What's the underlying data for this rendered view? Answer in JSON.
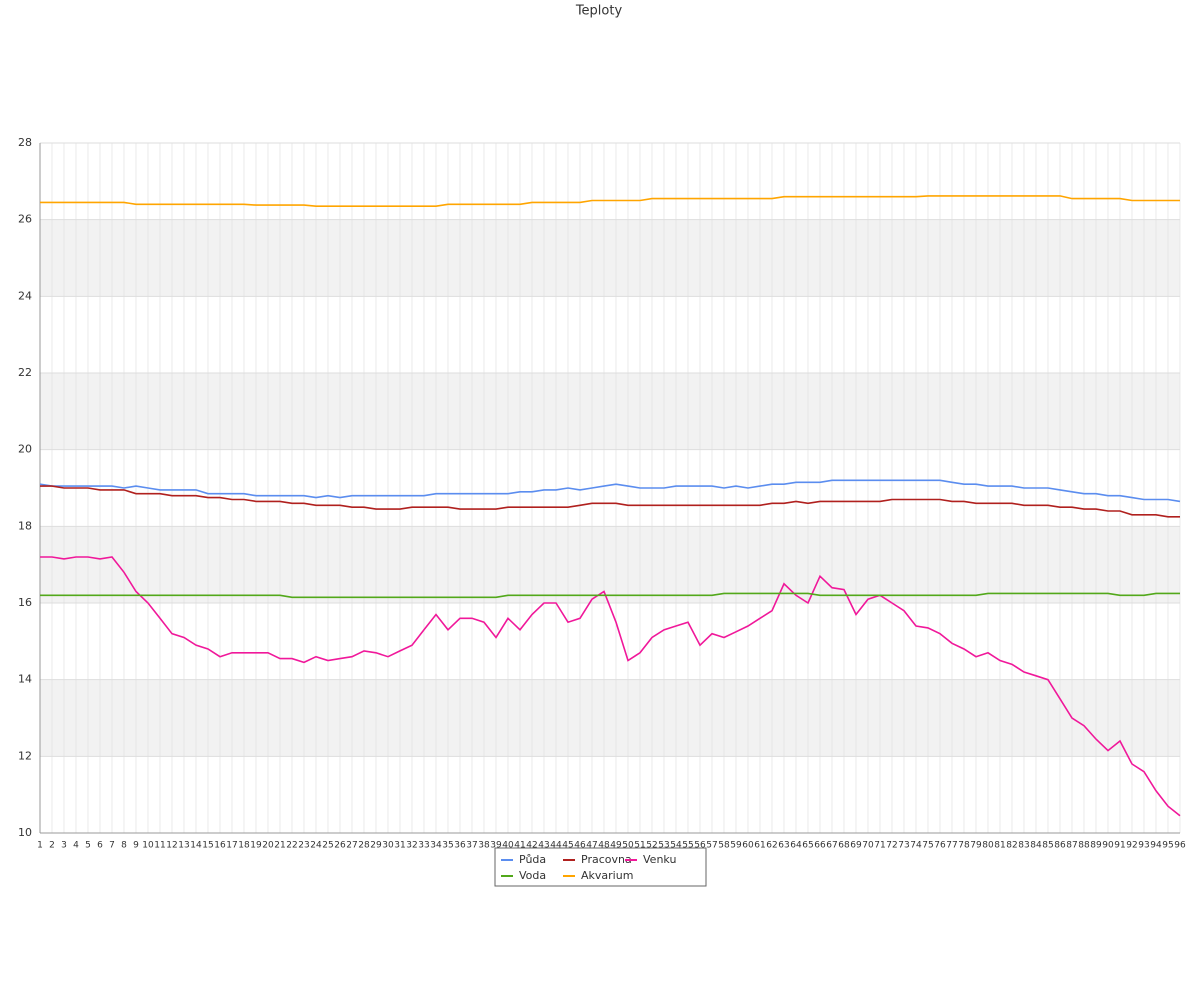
{
  "chart_data": {
    "type": "line",
    "title": "Teploty",
    "categories": [
      "1",
      "2",
      "3",
      "4",
      "5",
      "6",
      "7",
      "8",
      "9",
      "10",
      "11",
      "12",
      "13",
      "14",
      "15",
      "16",
      "17",
      "18",
      "19",
      "20",
      "21",
      "22",
      "23",
      "24",
      "25",
      "26",
      "27",
      "28",
      "29",
      "30",
      "31",
      "32",
      "33",
      "34",
      "35",
      "36",
      "37",
      "38",
      "39",
      "40",
      "41",
      "42",
      "43",
      "44",
      "45",
      "46",
      "47",
      "48",
      "49",
      "50",
      "51",
      "52",
      "53",
      "54",
      "55",
      "56",
      "57",
      "58",
      "59",
      "60",
      "61",
      "62",
      "63",
      "64",
      "65",
      "66",
      "67",
      "68",
      "69",
      "70",
      "71",
      "72",
      "73",
      "74",
      "75",
      "76",
      "77",
      "78",
      "79",
      "80",
      "81",
      "82",
      "83",
      "84",
      "85",
      "86",
      "87",
      "88",
      "89",
      "90",
      "91",
      "92",
      "93",
      "94",
      "95",
      "96"
    ],
    "ylim": [
      10,
      28
    ],
    "yticks": [
      10,
      12,
      14,
      16,
      18,
      20,
      22,
      24,
      26,
      28
    ],
    "grid": true,
    "legend": "bottom",
    "series": [
      {
        "name": "Půda",
        "color": "#5b8def",
        "values": [
          19.1,
          19.05,
          19.05,
          19.05,
          19.05,
          19.05,
          19.05,
          19.0,
          19.05,
          19.0,
          18.95,
          18.95,
          18.95,
          18.95,
          18.85,
          18.85,
          18.85,
          18.85,
          18.8,
          18.8,
          18.8,
          18.8,
          18.8,
          18.75,
          18.8,
          18.75,
          18.8,
          18.8,
          18.8,
          18.8,
          18.8,
          18.8,
          18.8,
          18.85,
          18.85,
          18.85,
          18.85,
          18.85,
          18.85,
          18.85,
          18.9,
          18.9,
          18.95,
          18.95,
          19.0,
          18.95,
          19.0,
          19.05,
          19.1,
          19.05,
          19.0,
          19.0,
          19.0,
          19.05,
          19.05,
          19.05,
          19.05,
          19.0,
          19.05,
          19.0,
          19.05,
          19.1,
          19.1,
          19.15,
          19.15,
          19.15,
          19.2,
          19.2,
          19.2,
          19.2,
          19.2,
          19.2,
          19.2,
          19.2,
          19.2,
          19.2,
          19.15,
          19.1,
          19.1,
          19.05,
          19.05,
          19.05,
          19.0,
          19.0,
          19.0,
          18.95,
          18.9,
          18.85,
          18.85,
          18.8,
          18.8,
          18.75,
          18.7,
          18.7,
          18.7,
          18.65
        ]
      },
      {
        "name": "Pracovna",
        "color": "#b0201e",
        "values": [
          19.05,
          19.05,
          19.0,
          19.0,
          19.0,
          18.95,
          18.95,
          18.95,
          18.85,
          18.85,
          18.85,
          18.8,
          18.8,
          18.8,
          18.75,
          18.75,
          18.7,
          18.7,
          18.65,
          18.65,
          18.65,
          18.6,
          18.6,
          18.55,
          18.55,
          18.55,
          18.5,
          18.5,
          18.45,
          18.45,
          18.45,
          18.5,
          18.5,
          18.5,
          18.5,
          18.45,
          18.45,
          18.45,
          18.45,
          18.5,
          18.5,
          18.5,
          18.5,
          18.5,
          18.5,
          18.55,
          18.6,
          18.6,
          18.6,
          18.55,
          18.55,
          18.55,
          18.55,
          18.55,
          18.55,
          18.55,
          18.55,
          18.55,
          18.55,
          18.55,
          18.55,
          18.6,
          18.6,
          18.65,
          18.6,
          18.65,
          18.65,
          18.65,
          18.65,
          18.65,
          18.65,
          18.7,
          18.7,
          18.7,
          18.7,
          18.7,
          18.65,
          18.65,
          18.6,
          18.6,
          18.6,
          18.6,
          18.55,
          18.55,
          18.55,
          18.5,
          18.5,
          18.45,
          18.45,
          18.4,
          18.4,
          18.3,
          18.3,
          18.3,
          18.25,
          18.25
        ]
      },
      {
        "name": "Venku",
        "color": "#f0189a",
        "values": [
          17.2,
          17.2,
          17.15,
          17.2,
          17.2,
          17.15,
          17.2,
          16.8,
          16.3,
          16.0,
          15.6,
          15.2,
          15.1,
          14.9,
          14.8,
          14.6,
          14.7,
          14.7,
          14.7,
          14.7,
          14.55,
          14.55,
          14.45,
          14.6,
          14.5,
          14.55,
          14.6,
          14.75,
          14.7,
          14.6,
          14.75,
          14.9,
          15.3,
          15.7,
          15.3,
          15.6,
          15.6,
          15.5,
          15.1,
          15.6,
          15.3,
          15.7,
          16.0,
          16.0,
          15.5,
          15.6,
          16.1,
          16.3,
          15.5,
          14.5,
          14.7,
          15.1,
          15.3,
          15.4,
          15.5,
          14.9,
          15.2,
          15.1,
          15.25,
          15.4,
          15.6,
          15.8,
          16.5,
          16.2,
          16.0,
          16.7,
          16.4,
          16.35,
          15.7,
          16.1,
          16.2,
          16.0,
          15.8,
          15.4,
          15.35,
          15.2,
          14.95,
          14.8,
          14.6,
          14.7,
          14.5,
          14.4,
          14.2,
          14.1,
          14.0,
          13.5,
          13.0,
          12.8,
          12.45,
          12.15,
          12.4,
          11.8,
          11.6,
          11.1,
          10.7,
          10.45
        ]
      },
      {
        "name": "Voda",
        "color": "#52a81a",
        "values": [
          16.2,
          16.2,
          16.2,
          16.2,
          16.2,
          16.2,
          16.2,
          16.2,
          16.2,
          16.2,
          16.2,
          16.2,
          16.2,
          16.2,
          16.2,
          16.2,
          16.2,
          16.2,
          16.2,
          16.2,
          16.2,
          16.15,
          16.15,
          16.15,
          16.15,
          16.15,
          16.15,
          16.15,
          16.15,
          16.15,
          16.15,
          16.15,
          16.15,
          16.15,
          16.15,
          16.15,
          16.15,
          16.15,
          16.15,
          16.2,
          16.2,
          16.2,
          16.2,
          16.2,
          16.2,
          16.2,
          16.2,
          16.2,
          16.2,
          16.2,
          16.2,
          16.2,
          16.2,
          16.2,
          16.2,
          16.2,
          16.2,
          16.25,
          16.25,
          16.25,
          16.25,
          16.25,
          16.25,
          16.25,
          16.25,
          16.2,
          16.2,
          16.2,
          16.2,
          16.2,
          16.2,
          16.2,
          16.2,
          16.2,
          16.2,
          16.2,
          16.2,
          16.2,
          16.2,
          16.25,
          16.25,
          16.25,
          16.25,
          16.25,
          16.25,
          16.25,
          16.25,
          16.25,
          16.25,
          16.25,
          16.2,
          16.2,
          16.2,
          16.25,
          16.25,
          16.25
        ]
      },
      {
        "name": "Akvarium",
        "color": "#ffa500",
        "values": [
          26.45,
          26.45,
          26.45,
          26.45,
          26.45,
          26.45,
          26.45,
          26.45,
          26.4,
          26.4,
          26.4,
          26.4,
          26.4,
          26.4,
          26.4,
          26.4,
          26.4,
          26.4,
          26.38,
          26.38,
          26.38,
          26.38,
          26.38,
          26.35,
          26.35,
          26.35,
          26.35,
          26.35,
          26.35,
          26.35,
          26.35,
          26.35,
          26.35,
          26.35,
          26.4,
          26.4,
          26.4,
          26.4,
          26.4,
          26.4,
          26.4,
          26.45,
          26.45,
          26.45,
          26.45,
          26.45,
          26.5,
          26.5,
          26.5,
          26.5,
          26.5,
          26.55,
          26.55,
          26.55,
          26.55,
          26.55,
          26.55,
          26.55,
          26.55,
          26.55,
          26.55,
          26.55,
          26.6,
          26.6,
          26.6,
          26.6,
          26.6,
          26.6,
          26.6,
          26.6,
          26.6,
          26.6,
          26.6,
          26.6,
          26.62,
          26.62,
          26.62,
          26.62,
          26.62,
          26.62,
          26.62,
          26.62,
          26.62,
          26.62,
          26.62,
          26.62,
          26.55,
          26.55,
          26.55,
          26.55,
          26.55,
          26.5,
          26.5,
          26.5,
          26.5,
          26.5
        ]
      }
    ]
  }
}
